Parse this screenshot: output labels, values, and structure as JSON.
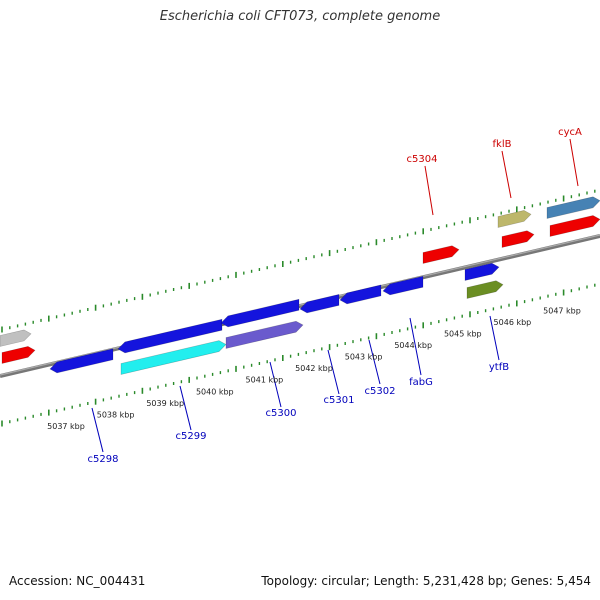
{
  "title": "Escherichia coli CFT073, complete genome",
  "footer": {
    "accession": "Accession: NC_004431",
    "topology": "Topology: circular; Length: 5,231,428 bp; Genes: 5,454"
  },
  "colors": {
    "backbone": "#777777",
    "tick": "#2a8a2a",
    "reverse_label": "#cc0000",
    "forward_label": "#0000bb",
    "gene_blue": "#1414dd",
    "gene_red": "#ee0000",
    "gene_cyan": "#22eeee",
    "gene_slate": "#6a5acd",
    "gene_khaki": "#bdb76b",
    "gene_olive": "#6b8e23",
    "gene_steel": "#4682b4",
    "gene_gray": "#c0c0c0"
  },
  "ruler": {
    "unit": "kbp",
    "labels": [
      "5037 kbp",
      "5038 kbp",
      "5039 kbp",
      "5040 kbp",
      "5041 kbp",
      "5042 kbp",
      "5043 kbp",
      "5044 kbp",
      "5045 kbp",
      "5046 kbp",
      "5047 kbp"
    ],
    "start_kbp": 5037,
    "end_kbp": 5047
  },
  "genes_top": [
    {
      "name": "c5304"
    },
    {
      "name": "fklB"
    },
    {
      "name": "cycA"
    }
  ],
  "genes_bottom": [
    {
      "name": "c5298"
    },
    {
      "name": "c5299"
    },
    {
      "name": "c5300"
    },
    {
      "name": "c5301"
    },
    {
      "name": "c5302"
    },
    {
      "name": "fabG"
    },
    {
      "name": "ytfB"
    }
  ]
}
